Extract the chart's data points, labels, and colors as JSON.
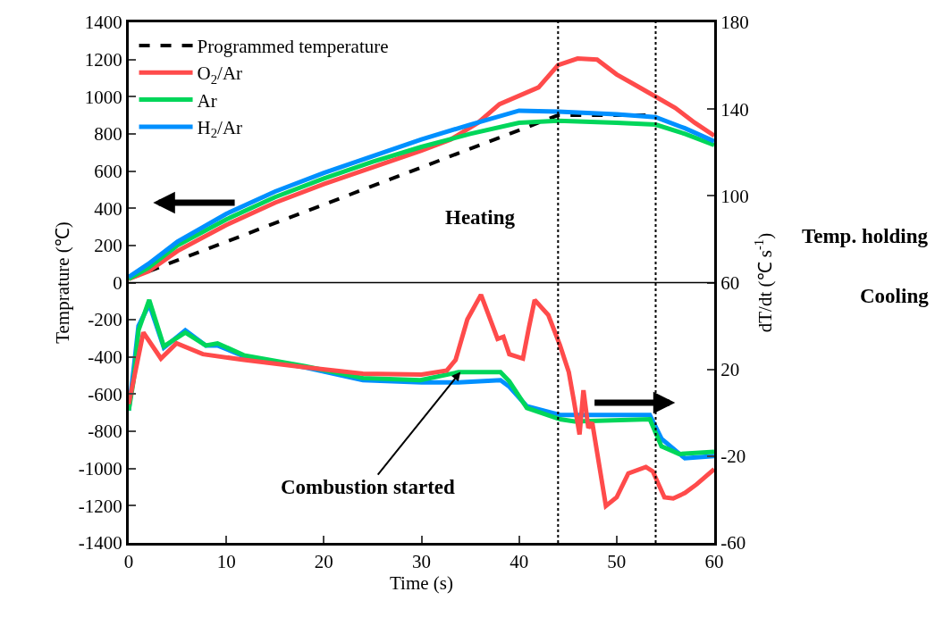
{
  "chart_data": {
    "type": "line",
    "xlabel": "Time (s)",
    "ylabel": "Temprature (℃)",
    "y2label": "dT/dt (℃ s$^{-1}$)",
    "xlim": [
      0,
      60
    ],
    "xticks": [
      0,
      10,
      20,
      30,
      40,
      50,
      60
    ],
    "ylim": [
      -1400,
      1400
    ],
    "yticks": [
      -1400,
      -1200,
      -1000,
      -800,
      -600,
      -400,
      -200,
      0,
      200,
      400,
      600,
      800,
      1000,
      1200,
      1400
    ],
    "y2lim": [
      -60,
      180
    ],
    "y2ticks": [
      -60,
      -20,
      20,
      60,
      100,
      140,
      180
    ],
    "legend": "top left",
    "marker": "none",
    "series": [
      {
        "name": "Programmed temperature",
        "color": "#000000",
        "line_style": "dashed",
        "x": [
          0,
          44,
          54
        ],
        "values": [
          20,
          900,
          900
        ]
      },
      {
        "name": "O$_{2}$/Ar",
        "color": "#ff4b4b",
        "x": [
          0,
          2,
          5,
          10,
          15,
          20,
          25,
          30,
          33,
          35.8,
          38,
          42,
          44,
          46,
          48,
          50,
          52,
          54,
          56,
          58,
          60
        ],
        "values": [
          20,
          60,
          170,
          310,
          430,
          530,
          620,
          710,
          770,
          860,
          960,
          1050,
          1170,
          1205,
          1200,
          1120,
          1060,
          1000,
          940,
          860,
          790
        ]
      },
      {
        "name": "Ar",
        "color": "#00d65a",
        "x": [
          0,
          2,
          5,
          10,
          15,
          20,
          25,
          30,
          35,
          40,
          44,
          50,
          54,
          57,
          60
        ],
        "values": [
          20,
          80,
          200,
          340,
          460,
          560,
          650,
          730,
          800,
          860,
          870,
          860,
          850,
          800,
          740
        ]
      },
      {
        "name": "H$_{2}$/Ar",
        "color": "#0090ff",
        "x": [
          0,
          2,
          5,
          10,
          15,
          20,
          25,
          30,
          35,
          40,
          44,
          50,
          54,
          57,
          60
        ],
        "values": [
          30,
          100,
          220,
          370,
          490,
          590,
          680,
          770,
          850,
          925,
          920,
          905,
          890,
          830,
          760
        ]
      },
      {
        "color": "#0090ff",
        "axis": "y2",
        "x": [
          0,
          0.5,
          1,
          2.1,
          3.6,
          5.8,
          7.9,
          9.1,
          11.8,
          18,
          24,
          30,
          33.8,
          38.1,
          39,
          40.8,
          44.2,
          45.7,
          53.4,
          54.6,
          57,
          60
        ],
        "values": [
          1,
          20,
          40,
          50,
          30,
          38,
          31,
          31,
          26,
          21,
          15,
          14,
          14,
          15,
          12,
          3,
          -1,
          -1,
          -1,
          -12,
          -21,
          -20
        ]
      },
      {
        "color": "#00d65a",
        "axis": "y2",
        "x": [
          0,
          0.5,
          1,
          2.1,
          3.6,
          5.8,
          7.9,
          9.1,
          11.8,
          18,
          24,
          29.9,
          33.8,
          38.1,
          39,
          40.8,
          44.2,
          45.7,
          53.4,
          54.6,
          56.4,
          60
        ],
        "values": [
          1,
          15,
          38,
          52,
          30.6,
          37,
          31,
          32,
          26.5,
          21.5,
          16,
          15,
          18.7,
          18.7,
          14.5,
          2.2,
          -3,
          -4,
          -3,
          -15.5,
          -19,
          -18
        ]
      },
      {
        "color": "#ff4b4b",
        "axis": "y2",
        "x": [
          0,
          1.5,
          3.3,
          4.9,
          7.6,
          11.8,
          18,
          24,
          30,
          32.6,
          33.5,
          34.7,
          36.1,
          37.8,
          38.4,
          39,
          40.4,
          41,
          41.6,
          43,
          44.2,
          45.1,
          45.6,
          46.2,
          46.6,
          47.1,
          47.5,
          48.9,
          50,
          51.2,
          53,
          53.7,
          54.9,
          55.8,
          57,
          58.2,
          60
        ],
        "values": [
          4,
          37,
          25,
          32,
          27,
          24.4,
          21,
          18,
          17.6,
          19.5,
          24.4,
          43,
          54.4,
          34,
          35,
          27,
          25,
          39,
          52,
          45,
          31,
          18.7,
          6,
          -10,
          10.4,
          -7,
          -4.5,
          -43,
          -39,
          -28,
          -25,
          -27,
          -39,
          -39.5,
          -37,
          -33,
          -26
        ]
      }
    ],
    "ref_lines": [
      {
        "axis": "x",
        "value": 44,
        "color": "#000000",
        "line_style": "dotted"
      },
      {
        "axis": "x",
        "value": 54,
        "color": "#000000",
        "line_style": "dotted"
      },
      {
        "axis": "y",
        "value": 0,
        "color": "#000000",
        "line_style": "solid"
      }
    ],
    "annotations": [
      "Heating",
      "Temp. holding",
      "Cooling",
      {
        "text": "Combustion started",
        "x": 34,
        "y": -480
      }
    ]
  }
}
